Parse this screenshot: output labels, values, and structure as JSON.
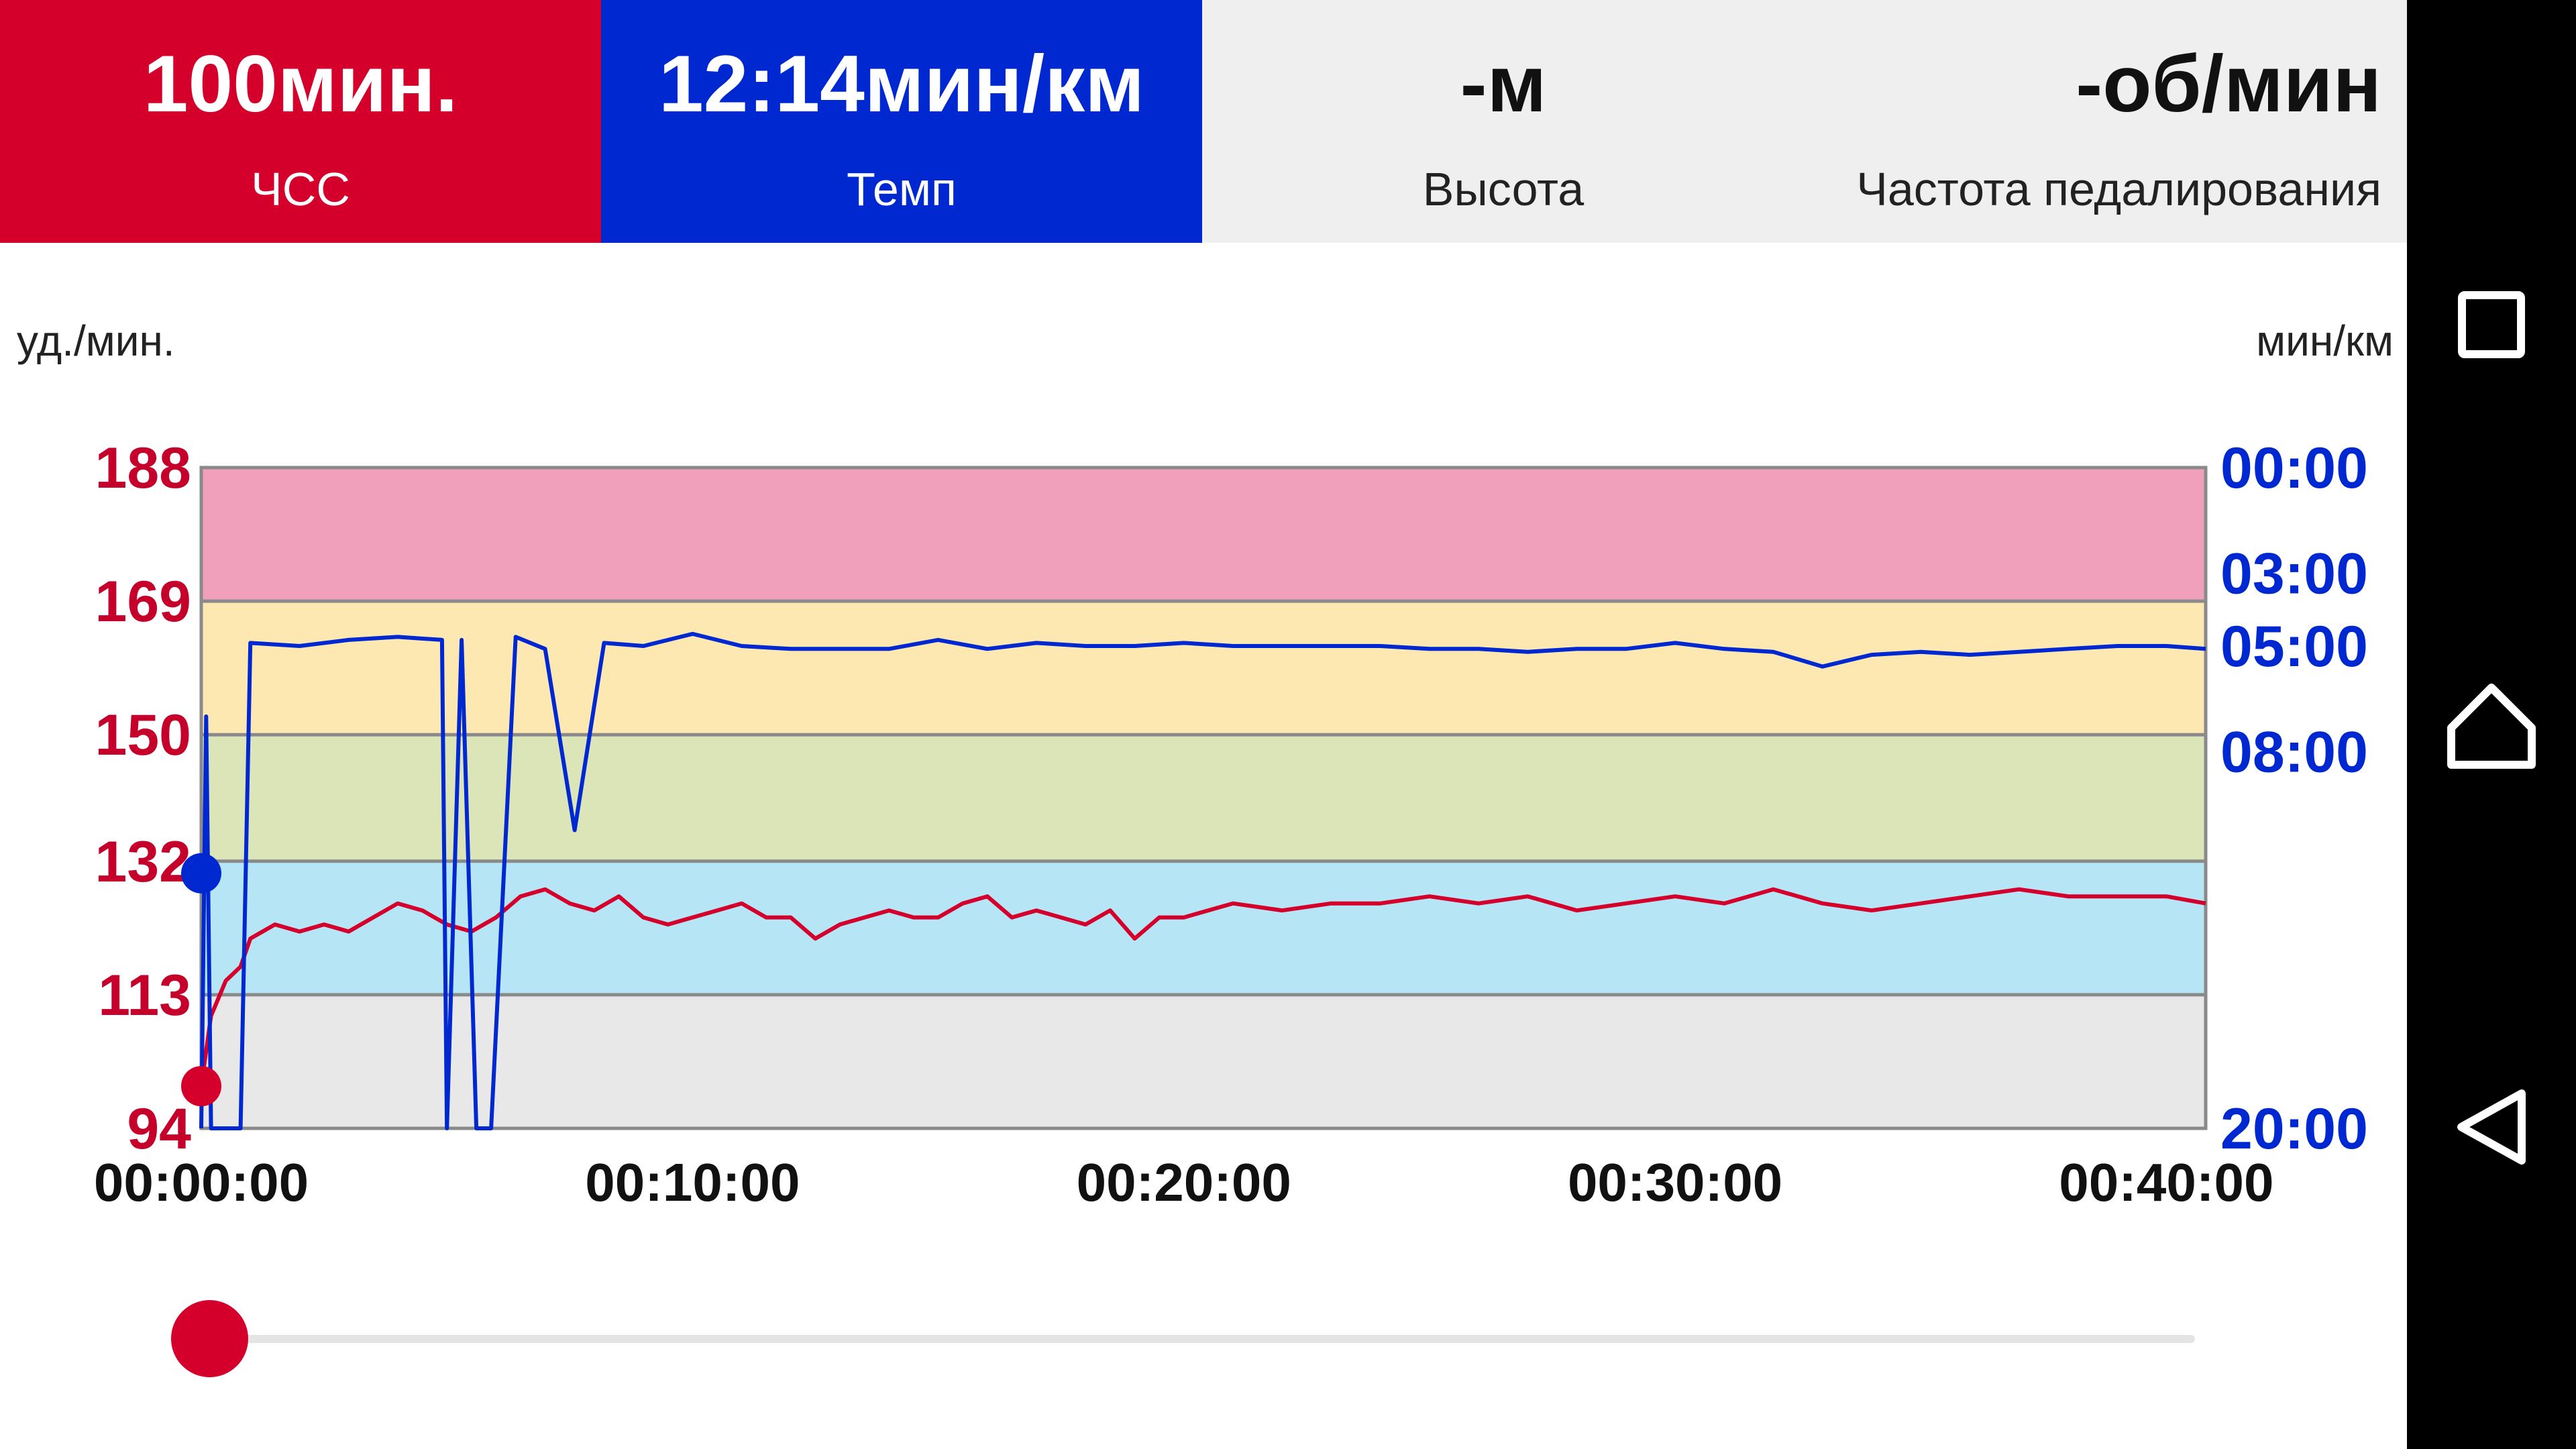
{
  "metrics": {
    "heart_rate": {
      "value": "100мин.",
      "label": "ЧСС"
    },
    "pace": {
      "value": "12:14мин/км",
      "label": "Темп"
    },
    "altitude": {
      "value": "-м",
      "label": "Высота"
    },
    "cadence": {
      "value": "-об/мин",
      "label": "Частота педалирования"
    }
  },
  "colors": {
    "hr": "#d4002b",
    "pace": "#0028d0",
    "zone_5": "#f1a0bc",
    "zone_4": "#fde8b2",
    "zone_3": "#dbe5b8",
    "zone_2": "#b6e6f6",
    "zone_1": "#e8e8e8"
  },
  "chart_data": {
    "type": "line",
    "left_unit": "уд./мин.",
    "right_unit": "мин/км",
    "left_ticks": [
      "188",
      "169",
      "150",
      "132",
      "113",
      "94"
    ],
    "right_ticks": [
      "00:00",
      "03:00",
      "05:00",
      "08:00",
      "20:00"
    ],
    "x_ticks": [
      "00:00:00",
      "00:10:00",
      "00:20:00",
      "00:30:00",
      "00:40:00"
    ],
    "hr_zones": [
      {
        "from": 94,
        "to": 113
      },
      {
        "from": 113,
        "to": 132
      },
      {
        "from": 132,
        "to": 150
      },
      {
        "from": 150,
        "to": 169
      },
      {
        "from": 169,
        "to": 188
      }
    ],
    "x_range_minutes": [
      0,
      40.8
    ],
    "hr_range": [
      94,
      188
    ],
    "pace_axis": "reciprocal",
    "pace_range": [
      "00:00",
      "20:00"
    ],
    "series": [
      {
        "name": "ЧСС",
        "axis": "left",
        "unit": "уд./мин.",
        "points": [
          [
            0,
            100
          ],
          [
            0.2,
            110
          ],
          [
            0.5,
            115
          ],
          [
            0.8,
            117
          ],
          [
            1.0,
            121
          ],
          [
            1.5,
            123
          ],
          [
            2,
            122
          ],
          [
            2.5,
            123
          ],
          [
            3,
            122
          ],
          [
            3.5,
            124
          ],
          [
            4,
            126
          ],
          [
            4.5,
            125
          ],
          [
            5,
            123
          ],
          [
            5.5,
            122
          ],
          [
            6,
            124
          ],
          [
            6.5,
            127
          ],
          [
            7,
            128
          ],
          [
            7.5,
            126
          ],
          [
            8,
            125
          ],
          [
            8.5,
            127
          ],
          [
            9,
            124
          ],
          [
            9.5,
            123
          ],
          [
            10,
            124
          ],
          [
            10.5,
            125
          ],
          [
            11,
            126
          ],
          [
            11.5,
            124
          ],
          [
            12,
            124
          ],
          [
            12.5,
            121
          ],
          [
            13,
            123
          ],
          [
            13.5,
            124
          ],
          [
            14,
            125
          ],
          [
            14.5,
            124
          ],
          [
            15,
            124
          ],
          [
            15.5,
            126
          ],
          [
            16,
            127
          ],
          [
            16.5,
            124
          ],
          [
            17,
            125
          ],
          [
            17.5,
            124
          ],
          [
            18,
            123
          ],
          [
            18.5,
            125
          ],
          [
            19,
            121
          ],
          [
            19.5,
            124
          ],
          [
            20,
            124
          ],
          [
            21,
            126
          ],
          [
            22,
            125
          ],
          [
            23,
            126
          ],
          [
            24,
            126
          ],
          [
            25,
            127
          ],
          [
            26,
            126
          ],
          [
            27,
            127
          ],
          [
            28,
            125
          ],
          [
            29,
            126
          ],
          [
            30,
            127
          ],
          [
            31,
            126
          ],
          [
            32,
            128
          ],
          [
            33,
            126
          ],
          [
            34,
            125
          ],
          [
            35,
            126
          ],
          [
            36,
            127
          ],
          [
            37,
            128
          ],
          [
            38,
            127
          ],
          [
            39,
            127
          ],
          [
            40,
            127
          ],
          [
            40.8,
            126
          ]
        ]
      },
      {
        "name": "Темп",
        "axis": "right",
        "unit": "мин/км",
        "points": [
          [
            0,
            "20:00"
          ],
          [
            0.1,
            "07:00"
          ],
          [
            0.2,
            "20:00"
          ],
          [
            0.8,
            "20:00"
          ],
          [
            1.0,
            "04:55"
          ],
          [
            2,
            "05:00"
          ],
          [
            3,
            "04:50"
          ],
          [
            4,
            "04:45"
          ],
          [
            4.9,
            "04:50"
          ],
          [
            5.0,
            "20:00"
          ],
          [
            5.3,
            "04:50"
          ],
          [
            5.6,
            "20:00"
          ],
          [
            5.9,
            "20:00"
          ],
          [
            6.4,
            "04:45"
          ],
          [
            7,
            "05:05"
          ],
          [
            7.6,
            "10:30"
          ],
          [
            8.2,
            "04:55"
          ],
          [
            9,
            "05:00"
          ],
          [
            10,
            "04:40"
          ],
          [
            11,
            "05:00"
          ],
          [
            12,
            "05:05"
          ],
          [
            13,
            "05:05"
          ],
          [
            14,
            "05:05"
          ],
          [
            15,
            "04:50"
          ],
          [
            16,
            "05:05"
          ],
          [
            17,
            "04:55"
          ],
          [
            18,
            "05:00"
          ],
          [
            19,
            "05:00"
          ],
          [
            20,
            "04:55"
          ],
          [
            21,
            "05:00"
          ],
          [
            22,
            "05:00"
          ],
          [
            23,
            "05:00"
          ],
          [
            24,
            "05:00"
          ],
          [
            25,
            "05:05"
          ],
          [
            26,
            "05:05"
          ],
          [
            27,
            "05:10"
          ],
          [
            28,
            "05:05"
          ],
          [
            29,
            "05:05"
          ],
          [
            30,
            "04:55"
          ],
          [
            31,
            "05:05"
          ],
          [
            32,
            "05:10"
          ],
          [
            33,
            "05:35"
          ],
          [
            34,
            "05:15"
          ],
          [
            35,
            "05:10"
          ],
          [
            36,
            "05:15"
          ],
          [
            37,
            "05:10"
          ],
          [
            38,
            "05:05"
          ],
          [
            39,
            "05:00"
          ],
          [
            40,
            "05:00"
          ],
          [
            40.8,
            "05:05"
          ]
        ]
      }
    ],
    "grid": true
  },
  "slider": {
    "position": 0
  },
  "navbar": {
    "recents_icon": "square-icon",
    "home_icon": "home-icon",
    "back_icon": "back-triangle-icon"
  }
}
